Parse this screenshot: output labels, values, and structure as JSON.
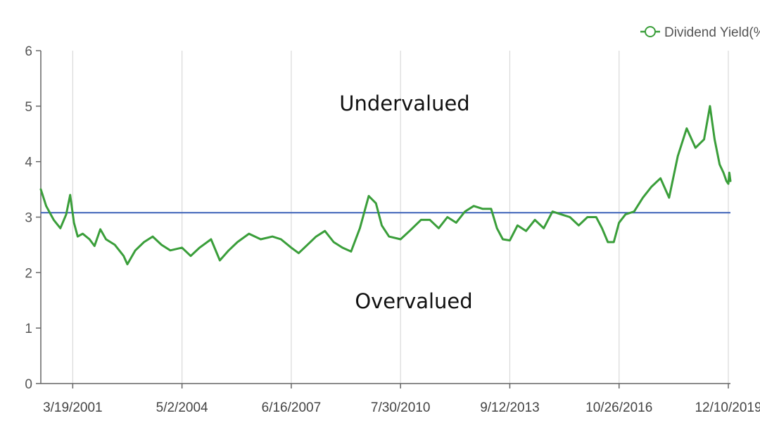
{
  "chart_data": {
    "type": "line",
    "title": "",
    "xlabel": "",
    "ylabel": "",
    "ylim": [
      0,
      6
    ],
    "xlim": [
      "2000-04-20",
      "2020-01-01"
    ],
    "y_ticks": [
      "0",
      "1",
      "2",
      "3",
      "4",
      "5",
      "6"
    ],
    "x_tick_labels": [
      "3/19/2001",
      "5/2/2004",
      "6/16/2007",
      "7/30/2010",
      "9/12/2013",
      "10/26/2016",
      "12/10/2019"
    ],
    "x_tick_dates": [
      "2001-03-19",
      "2004-05-02",
      "2007-06-16",
      "2010-07-30",
      "2013-09-12",
      "2016-10-26",
      "2019-12-10"
    ],
    "grid": {
      "vertical": true,
      "horizontal": false
    },
    "legend_position": "top-right",
    "colors": {
      "series": "#3a9e3a",
      "reference": "#3f63b8",
      "grid": "#d9d9d9",
      "axis": "#666666"
    },
    "series": [
      {
        "name": "Dividend Yield(%)",
        "points": [
          [
            "2000-04-20",
            3.5
          ],
          [
            "2000-06-15",
            3.2
          ],
          [
            "2000-09-01",
            2.95
          ],
          [
            "2000-11-10",
            2.8
          ],
          [
            "2001-01-10",
            3.05
          ],
          [
            "2001-02-20",
            3.4
          ],
          [
            "2001-04-01",
            2.9
          ],
          [
            "2001-05-10",
            2.65
          ],
          [
            "2001-07-01",
            2.7
          ],
          [
            "2001-09-10",
            2.6
          ],
          [
            "2001-11-01",
            2.48
          ],
          [
            "2002-01-01",
            2.78
          ],
          [
            "2002-03-01",
            2.6
          ],
          [
            "2002-06-01",
            2.5
          ],
          [
            "2002-09-01",
            2.3
          ],
          [
            "2002-10-10",
            2.15
          ],
          [
            "2003-01-01",
            2.4
          ],
          [
            "2003-04-01",
            2.55
          ],
          [
            "2003-07-01",
            2.65
          ],
          [
            "2003-10-01",
            2.5
          ],
          [
            "2004-01-01",
            2.4
          ],
          [
            "2004-05-02",
            2.45
          ],
          [
            "2004-08-01",
            2.3
          ],
          [
            "2004-11-01",
            2.45
          ],
          [
            "2005-03-01",
            2.6
          ],
          [
            "2005-06-01",
            2.22
          ],
          [
            "2005-09-01",
            2.4
          ],
          [
            "2005-12-01",
            2.55
          ],
          [
            "2006-04-01",
            2.7
          ],
          [
            "2006-08-01",
            2.6
          ],
          [
            "2006-12-01",
            2.65
          ],
          [
            "2007-03-01",
            2.6
          ],
          [
            "2007-06-16",
            2.45
          ],
          [
            "2007-09-01",
            2.35
          ],
          [
            "2007-12-01",
            2.5
          ],
          [
            "2008-03-01",
            2.65
          ],
          [
            "2008-06-01",
            2.75
          ],
          [
            "2008-09-01",
            2.55
          ],
          [
            "2008-12-01",
            2.45
          ],
          [
            "2009-03-01",
            2.38
          ],
          [
            "2009-06-01",
            2.8
          ],
          [
            "2009-09-01",
            3.38
          ],
          [
            "2009-11-15",
            3.25
          ],
          [
            "2010-01-15",
            2.85
          ],
          [
            "2010-04-01",
            2.65
          ],
          [
            "2010-07-30",
            2.6
          ],
          [
            "2010-11-01",
            2.75
          ],
          [
            "2011-03-01",
            2.95
          ],
          [
            "2011-06-01",
            2.95
          ],
          [
            "2011-09-01",
            2.8
          ],
          [
            "2011-12-01",
            3.0
          ],
          [
            "2012-03-01",
            2.9
          ],
          [
            "2012-06-01",
            3.1
          ],
          [
            "2012-09-01",
            3.2
          ],
          [
            "2012-12-01",
            3.15
          ],
          [
            "2013-03-01",
            3.15
          ],
          [
            "2013-05-01",
            2.8
          ],
          [
            "2013-07-01",
            2.6
          ],
          [
            "2013-09-12",
            2.58
          ],
          [
            "2013-12-01",
            2.85
          ],
          [
            "2014-03-01",
            2.75
          ],
          [
            "2014-06-01",
            2.95
          ],
          [
            "2014-09-01",
            2.8
          ],
          [
            "2014-12-01",
            3.1
          ],
          [
            "2015-03-01",
            3.05
          ],
          [
            "2015-06-01",
            3.0
          ],
          [
            "2015-09-01",
            2.85
          ],
          [
            "2015-12-01",
            3.0
          ],
          [
            "2016-03-01",
            3.0
          ],
          [
            "2016-05-01",
            2.8
          ],
          [
            "2016-07-01",
            2.55
          ],
          [
            "2016-09-01",
            2.55
          ],
          [
            "2016-10-26",
            2.9
          ],
          [
            "2017-01-01",
            3.05
          ],
          [
            "2017-04-01",
            3.1
          ],
          [
            "2017-07-01",
            3.35
          ],
          [
            "2017-10-01",
            3.55
          ],
          [
            "2018-01-01",
            3.7
          ],
          [
            "2018-04-01",
            3.35
          ],
          [
            "2018-07-01",
            4.1
          ],
          [
            "2018-10-01",
            4.6
          ],
          [
            "2019-01-01",
            4.25
          ],
          [
            "2019-04-01",
            4.4
          ],
          [
            "2019-06-01",
            5.0
          ],
          [
            "2019-07-20",
            4.4
          ],
          [
            "2019-09-10",
            3.95
          ],
          [
            "2019-10-20",
            3.8
          ],
          [
            "2019-11-20",
            3.65
          ],
          [
            "2019-12-10",
            3.6
          ],
          [
            "2019-12-20",
            3.8
          ],
          [
            "2020-01-01",
            3.65
          ]
        ]
      }
    ],
    "reference_line": {
      "y": 3.08
    },
    "annotations": [
      {
        "text": "Undervalued"
      },
      {
        "text": "Overvalued"
      }
    ]
  }
}
